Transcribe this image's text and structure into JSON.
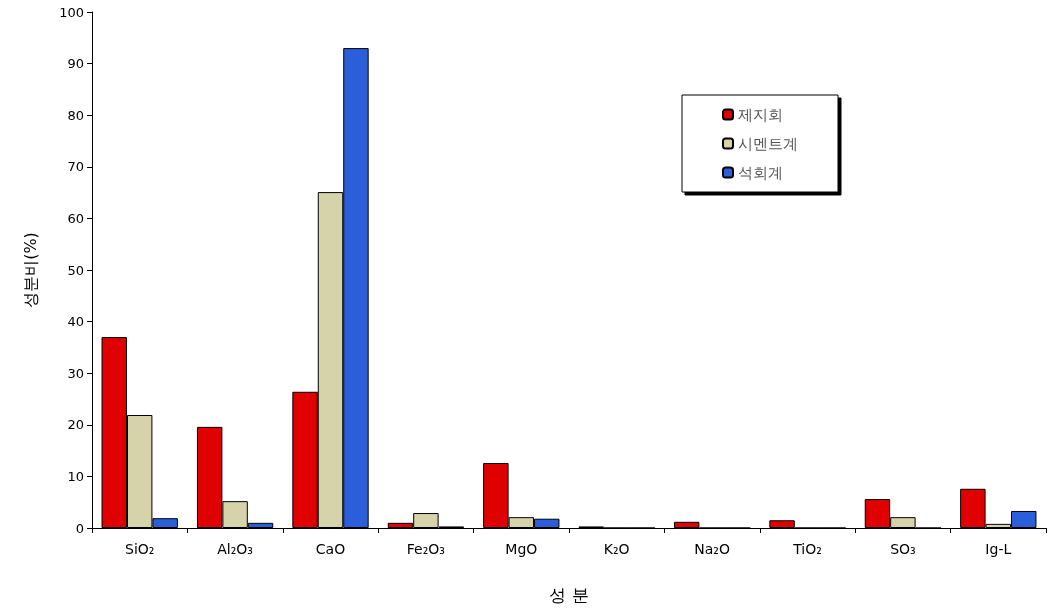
{
  "chart_data": {
    "type": "bar",
    "xlabel": "성 분",
    "ylabel": "성분비(%)",
    "categories": [
      "SiO₂",
      "Al₂O₃",
      "CaO",
      "Fe₂O₃",
      "MgO",
      "K₂O",
      "Na₂O",
      "TiO₂",
      "SO₃",
      "Ig-L"
    ],
    "series": [
      {
        "name": "제지회",
        "color": "#e00000",
        "values": [
          37,
          19.6,
          26.4,
          1,
          12.6,
          0.3,
          1.2,
          1.5,
          5.6,
          7.6
        ]
      },
      {
        "name": "시멘트계",
        "color": "#d6d2aa",
        "values": [
          21.9,
          5.2,
          65.1,
          2.9,
          2.1,
          0,
          0,
          0,
          2.1,
          0.8
        ]
      },
      {
        "name": "석회계",
        "color": "#2b5fd9",
        "values": [
          1.9,
          1,
          93,
          0.3,
          1.8,
          0,
          0,
          0,
          0,
          3.3
        ]
      }
    ],
    "ylim": [
      0,
      100
    ],
    "yticks": [
      0,
      10,
      20,
      30,
      40,
      50,
      60,
      70,
      80,
      90,
      100
    ],
    "grid": false,
    "legend": "top right"
  }
}
